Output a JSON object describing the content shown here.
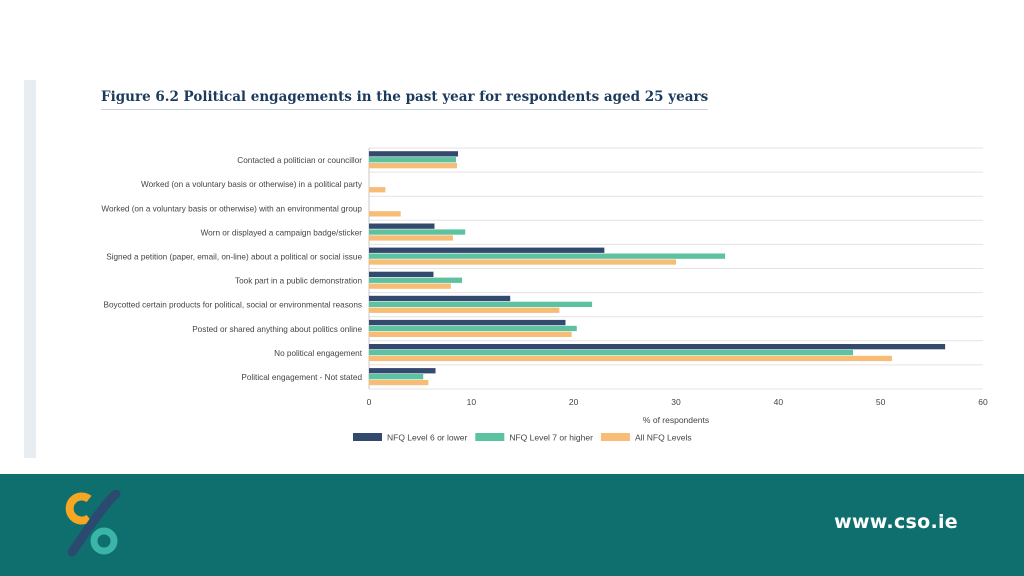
{
  "figure_title": "Figure 6.2 Political engagements in the past year for respondents aged 25 years",
  "footer": {
    "url": "www.cso.ie"
  },
  "logo": {
    "icon": "cso-logo-icon",
    "colors": [
      "#f5a623",
      "#2b4a6f",
      "#3bb5a8"
    ]
  },
  "chart_data": {
    "type": "bar",
    "orientation": "horizontal",
    "categories": [
      "Contacted a politician or councillor",
      "Worked (on a voluntary basis or otherwise) in a political party",
      "Worked (on a voluntary basis or otherwise) with an environmental group",
      "Worn or displayed a campaign badge/sticker",
      "Signed a petition (paper, email, on-line) about a political or social issue",
      "Took part in a public demonstration",
      "Boycotted certain products for political, social or environmental reasons",
      "Posted or shared anything about politics online",
      "No political engagement",
      "Political engagement - Not stated"
    ],
    "series": [
      {
        "name": "NFQ Level 6 or lower",
        "color": "#34496e",
        "values": [
          8.7,
          0,
          0,
          6.4,
          23.0,
          6.3,
          13.8,
          19.2,
          56.3,
          6.5
        ]
      },
      {
        "name": "NFQ Level 7 or higher",
        "color": "#5cc2a0",
        "values": [
          8.5,
          0,
          0,
          9.4,
          34.8,
          9.1,
          21.8,
          20.3,
          47.3,
          5.3
        ]
      },
      {
        "name": "All NFQ Levels",
        "color": "#f7bd77",
        "values": [
          8.6,
          1.6,
          3.1,
          8.2,
          30.0,
          8.0,
          18.6,
          19.8,
          51.1,
          5.8
        ]
      }
    ],
    "xlabel": "% of respondents",
    "ylabel": "",
    "xlim": [
      0,
      60
    ],
    "xticks": [
      0,
      10,
      20,
      30,
      40,
      50,
      60
    ],
    "grid": "horizontal-separators",
    "legend_position": "bottom"
  }
}
